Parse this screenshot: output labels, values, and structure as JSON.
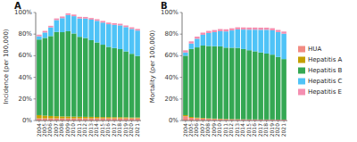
{
  "chart_data": [
    {
      "type": "bar",
      "stacked": true,
      "title": "A",
      "ylabel": "Incidence (per 100,000)",
      "categories": [
        "2004",
        "2005",
        "2006",
        "2007",
        "2008",
        "2009",
        "2010",
        "2011",
        "2012",
        "2013",
        "2014",
        "2015",
        "2016",
        "2017",
        "2018",
        "2019",
        "2020",
        "2021"
      ],
      "series": [
        {
          "name": "HUA",
          "color": "#F28B82",
          "values": [
            2.0,
            2.0,
            2.0,
            2.0,
            2.0,
            2.0,
            2.0,
            2.0,
            2.0,
            2.0,
            2.0,
            2.0,
            2.0,
            2.0,
            2.0,
            2.0,
            2.0,
            2.0
          ]
        },
        {
          "name": "Hepatitis A",
          "color": "#C4A000",
          "values": [
            3.0,
            2.5,
            2.2,
            2.0,
            1.8,
            1.7,
            1.6,
            1.5,
            1.4,
            1.4,
            1.3,
            1.2,
            1.2,
            1.1,
            1.1,
            1.0,
            0.8,
            0.8
          ]
        },
        {
          "name": "Hepatitis B",
          "color": "#34A853",
          "values": [
            70.0,
            72.0,
            74.0,
            78.0,
            78.0,
            79.0,
            77.0,
            74.0,
            73.0,
            71.0,
            69.0,
            67.0,
            65.0,
            64.0,
            63.0,
            61.0,
            59.0,
            57.0
          ]
        },
        {
          "name": "Hepatitis C",
          "color": "#4FC3F7",
          "values": [
            3.0,
            5.0,
            8.0,
            11.0,
            13.0,
            15.0,
            16.0,
            17.0,
            18.0,
            19.0,
            20.0,
            20.5,
            21.0,
            21.5,
            22.0,
            22.5,
            23.0,
            23.5
          ]
        },
        {
          "name": "Hepatitis E",
          "color": "#F48FB1",
          "values": [
            1.5,
            1.5,
            1.5,
            1.5,
            1.5,
            1.5,
            1.5,
            1.5,
            1.5,
            1.5,
            1.5,
            1.5,
            1.5,
            1.5,
            1.5,
            1.5,
            1.5,
            1.5
          ]
        }
      ],
      "ylim": [
        0,
        100
      ],
      "yticks": [
        {
          "value": 0,
          "label": "0%"
        },
        {
          "value": 20,
          "label": "20%"
        },
        {
          "value": 40,
          "label": "40%"
        },
        {
          "value": 60,
          "label": "60%"
        },
        {
          "value": 80,
          "label": "80%"
        },
        {
          "value": 100,
          "label": "100%"
        }
      ],
      "grid": false,
      "legend": "right"
    },
    {
      "type": "bar",
      "stacked": true,
      "title": "B",
      "ylabel": "Mortality (per 100,000)",
      "categories": [
        "2004",
        "2005",
        "2006",
        "2007",
        "2008",
        "2009",
        "2010",
        "2011",
        "2012",
        "2013",
        "2014",
        "2015",
        "2016",
        "2017",
        "2018",
        "2019",
        "2020",
        "2021"
      ],
      "series": [
        {
          "name": "HUA",
          "color": "#F28B82",
          "values": [
            4.0,
            2.5,
            2.0,
            1.8,
            1.5,
            1.4,
            1.3,
            1.2,
            1.1,
            1.0,
            1.0,
            0.9,
            0.9,
            0.8,
            0.8,
            0.8,
            0.8,
            0.8
          ]
        },
        {
          "name": "Hepatitis A",
          "color": "#C4A000",
          "values": [
            1.0,
            0.8,
            0.7,
            0.6,
            0.5,
            0.4,
            0.4,
            0.3,
            0.3,
            0.3,
            0.2,
            0.2,
            0.2,
            0.2,
            0.2,
            0.2,
            0.1,
            0.1
          ]
        },
        {
          "name": "Hepatitis B",
          "color": "#34A853",
          "values": [
            55.0,
            63.0,
            65.0,
            67.0,
            67.0,
            67.0,
            67.0,
            66.0,
            66.0,
            66.0,
            65.0,
            64.0,
            63.0,
            62.0,
            61.0,
            60.0,
            58.0,
            56.0
          ]
        },
        {
          "name": "Hepatitis C",
          "color": "#4FC3F7",
          "values": [
            3.0,
            5.0,
            8.0,
            10.0,
            12.0,
            13.0,
            14.0,
            15.0,
            16.0,
            17.0,
            18.0,
            19.0,
            20.0,
            21.0,
            22.0,
            22.5,
            23.0,
            23.5
          ]
        },
        {
          "name": "Hepatitis E",
          "color": "#F48FB1",
          "values": [
            2.0,
            2.0,
            2.0,
            2.0,
            2.0,
            2.0,
            2.0,
            2.0,
            2.0,
            2.0,
            2.0,
            2.0,
            2.0,
            2.0,
            2.0,
            2.0,
            2.0,
            2.0
          ]
        }
      ],
      "ylim": [
        0,
        100
      ],
      "yticks": [
        {
          "value": 0,
          "label": "0%"
        },
        {
          "value": 20,
          "label": "20%"
        },
        {
          "value": 40,
          "label": "40%"
        },
        {
          "value": 60,
          "label": "60%"
        },
        {
          "value": 80,
          "label": "80%"
        },
        {
          "value": 100,
          "label": "100%"
        }
      ],
      "grid": false
    }
  ]
}
